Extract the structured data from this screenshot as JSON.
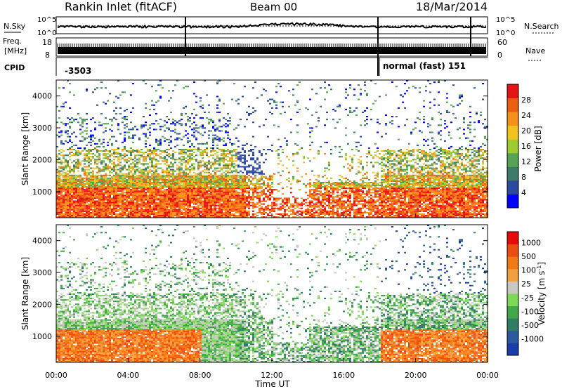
{
  "header": {
    "station": "Rankin Inlet (fitACF)",
    "beam": "Beam 00",
    "date": "18/Mar/2014"
  },
  "status_panels": {
    "nsky": {
      "label": "N.Sky",
      "ticks": [
        "10^5",
        "10^0"
      ],
      "right_ticks": [
        "10^5",
        "10^0"
      ],
      "right_label": "N.Search"
    },
    "freq": {
      "label_top": "Freq.",
      "label_bottom": "[MHz]",
      "ticks": [
        "18",
        "8"
      ],
      "right_ticks": [
        "60",
        "0"
      ],
      "right_label": "Nave"
    },
    "cpid": {
      "label": "CPID",
      "segments": [
        "-3503",
        "normal (fast) 151"
      ]
    }
  },
  "chart_data": [
    {
      "type": "heatmap",
      "name": "power-panel",
      "xlabel": "",
      "ylabel": "Slant Range [km]",
      "xlim_hours": [
        0,
        24
      ],
      "ylim": [
        180,
        4500
      ],
      "yticks": [
        "1000",
        "2000",
        "3000",
        "4000"
      ],
      "colorbar": {
        "label": "Power [dB]",
        "ticks": [
          "4",
          "8",
          "12",
          "16",
          "20",
          "24",
          "28"
        ],
        "colors": [
          "#0000ff",
          "#2c4aa0",
          "#3d7a6a",
          "#55a355",
          "#9ccc2e",
          "#f2c21e",
          "#f5901a",
          "#ea6010",
          "#e51414"
        ]
      }
    },
    {
      "type": "heatmap",
      "name": "velocity-panel",
      "xlabel": "Time UT",
      "ylabel": "Slant Range [km]",
      "xlim_hours": [
        0,
        24
      ],
      "ylim": [
        180,
        4500
      ],
      "xticks": [
        "00:00",
        "04:00",
        "08:00",
        "12:00",
        "16:00",
        "20:00",
        "00:00"
      ],
      "yticks": [
        "1000",
        "2000",
        "3000",
        "4000"
      ],
      "colorbar": {
        "label": "Velocity [m s",
        "label_sup": "-1",
        "label_end": "]",
        "ticks": [
          "1000",
          "500",
          "100",
          "25",
          "-25",
          "-100",
          "-500",
          "-1000"
        ],
        "colors": [
          "#1a3ca8",
          "#2d5a9e",
          "#2e7d64",
          "#40a848",
          "#7ed957",
          "#c8c8c0",
          "#f0a040",
          "#f07a14",
          "#ea4e10",
          "#e60a0a"
        ]
      }
    }
  ]
}
